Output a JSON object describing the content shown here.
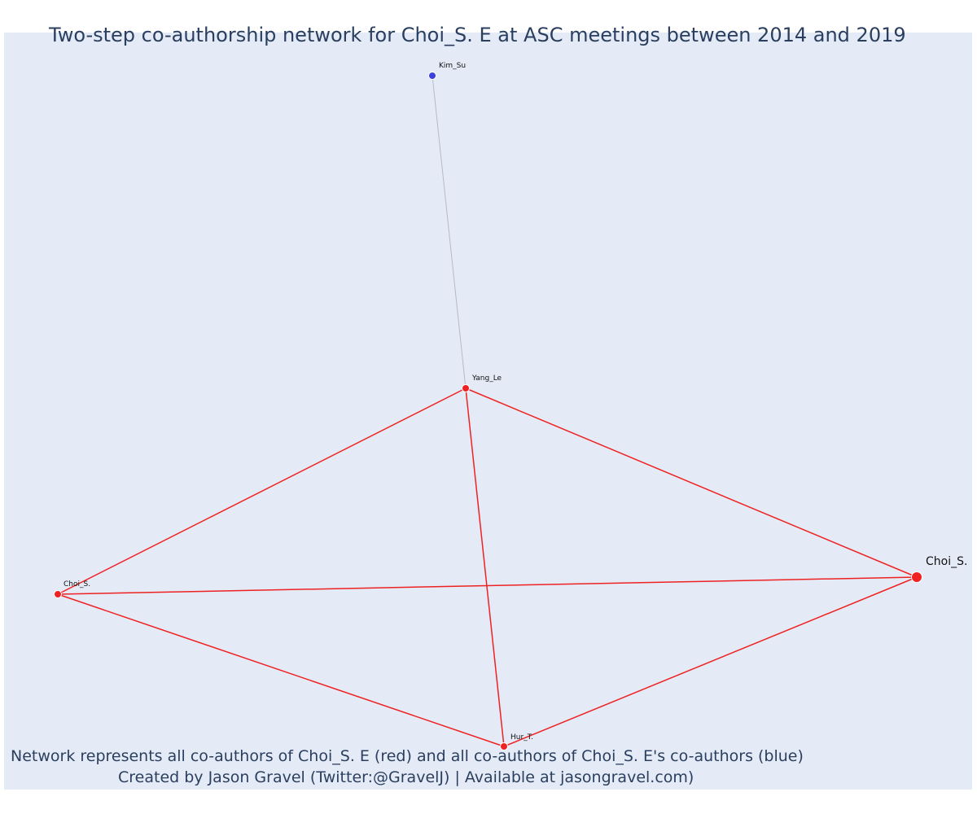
{
  "title": "Two-step co-authorship network for Choi_S. E at ASC meetings between 2014 and 2019",
  "caption": {
    "line1": "Network represents all co-authors of Choi_S. E (red) and all co-authors of Choi_S. E's co-authors (blue)",
    "line2": "Created by Jason Gravel (Twitter:@GravelJ) | Available at jasongravel.com)"
  },
  "colors": {
    "coauthor": "#ee2222",
    "second_step": "#3a3fe0",
    "edge_primary": "#ee2222",
    "edge_secondary": "#b8b8c8",
    "background": "#e5ebf6"
  },
  "network": {
    "nodes": [
      {
        "id": "kim",
        "label": "Kim_Su",
        "group": "second_step"
      },
      {
        "id": "yang",
        "label": "Yang_Le",
        "group": "coauthor"
      },
      {
        "id": "choi_ego",
        "label": "Choi_S.",
        "group": "coauthor",
        "ego": true
      },
      {
        "id": "choi2",
        "label": "Choi_S.",
        "group": "coauthor"
      },
      {
        "id": "hur",
        "label": "Hur_T.",
        "group": "coauthor"
      }
    ],
    "edges": [
      {
        "source": "kim",
        "target": "yang",
        "type": "secondary"
      },
      {
        "source": "yang",
        "target": "choi2",
        "type": "primary"
      },
      {
        "source": "yang",
        "target": "choi_ego",
        "type": "primary"
      },
      {
        "source": "yang",
        "target": "hur",
        "type": "primary"
      },
      {
        "source": "choi2",
        "target": "choi_ego",
        "type": "primary"
      },
      {
        "source": "choi2",
        "target": "hur",
        "type": "primary"
      },
      {
        "source": "hur",
        "target": "choi_ego",
        "type": "primary"
      }
    ]
  }
}
